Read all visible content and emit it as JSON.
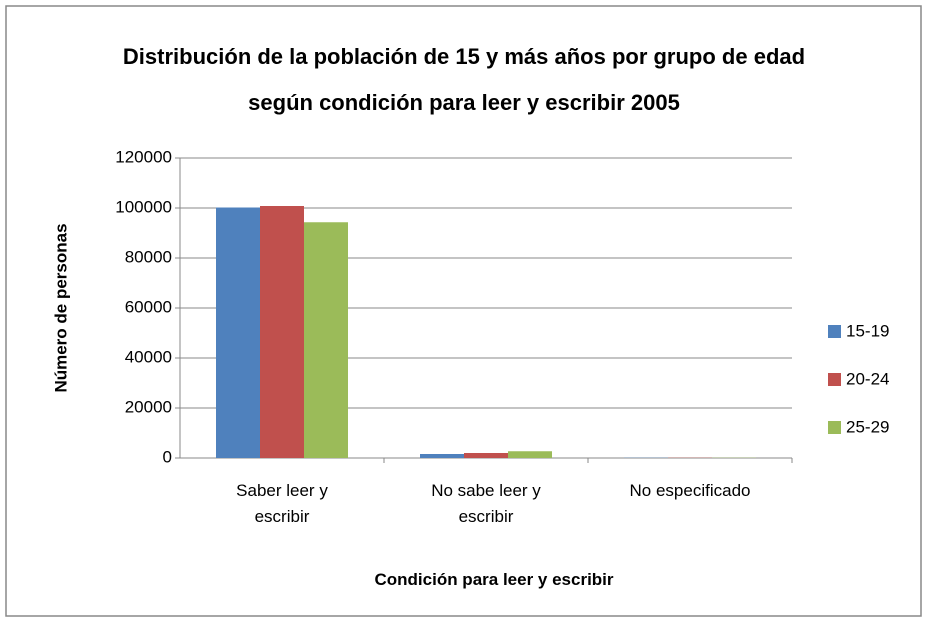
{
  "chart_data": {
    "type": "bar",
    "title": "Distribución de la población de 15 y más años por grupo de edad según condición para leer y escribir 2005",
    "x_label": "Condición para leer y escribir",
    "y_label": "Número de personas",
    "categories": [
      "Saber leer y escribir",
      "No sabe leer y escribir",
      "No especificado"
    ],
    "series": [
      {
        "name": "15-19",
        "color": "#4f81bd",
        "values": [
          100200,
          1600,
          100
        ]
      },
      {
        "name": "20-24",
        "color": "#c0504d",
        "values": [
          100800,
          2000,
          100
        ]
      },
      {
        "name": "25-29",
        "color": "#9bbb59",
        "values": [
          94300,
          2700,
          100
        ]
      }
    ],
    "ylim": [
      0,
      120000
    ],
    "yticks": [
      0,
      20000,
      40000,
      60000,
      80000,
      100000,
      120000
    ],
    "grid": true,
    "legend": "right"
  }
}
